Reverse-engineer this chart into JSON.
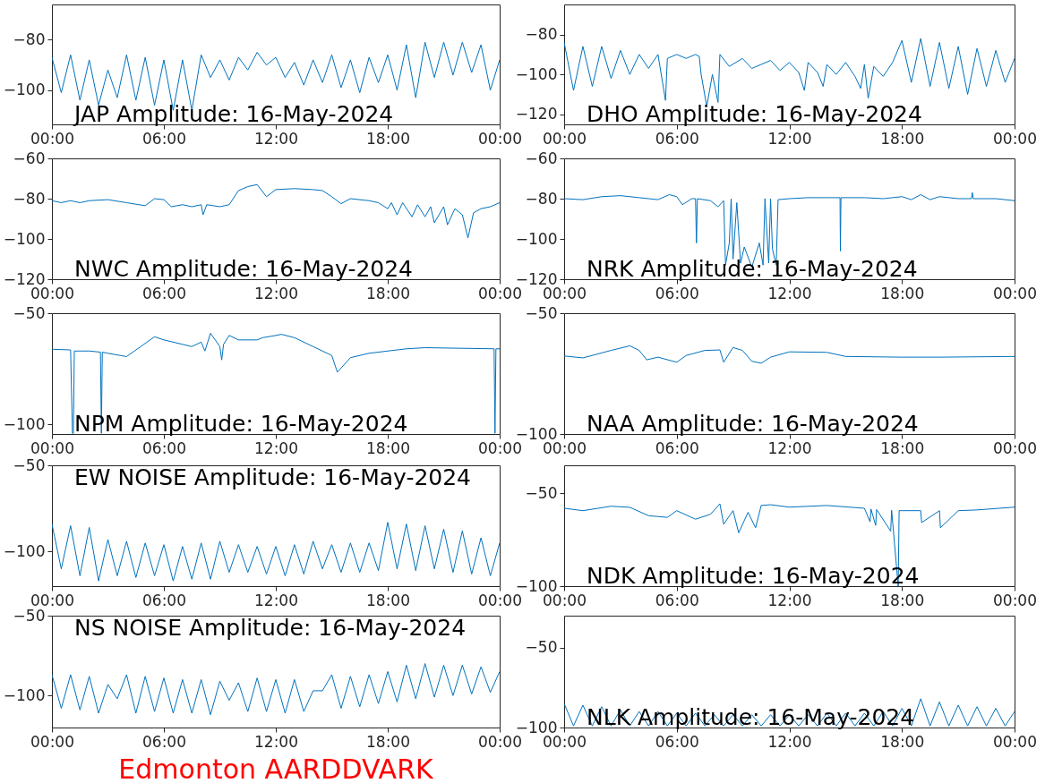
{
  "chart_data": [
    {
      "type": "line",
      "title": "JAP Amplitude: 16-May-2024",
      "xlim": [
        0,
        24
      ],
      "xticks": [
        {
          "value": 0,
          "label": "00:00"
        },
        {
          "value": 6,
          "label": "06:00"
        },
        {
          "value": 12,
          "label": "12:00"
        },
        {
          "value": 18,
          "label": "18:00"
        },
        {
          "value": 24,
          "label": "00:00"
        }
      ],
      "ylim": [
        -113.6,
        -66
      ],
      "yticks": [
        -100,
        -80
      ],
      "series": [
        {
          "color": "#0072bd",
          "x": [
            0,
            0.5,
            1,
            1.5,
            2,
            2.5,
            3,
            3.5,
            4,
            4.5,
            5,
            5.5,
            6,
            6.5,
            7,
            7.5,
            8,
            8.5,
            9,
            9.5,
            10,
            10.5,
            11,
            11.5,
            12,
            12.5,
            13,
            13.5,
            14,
            14.5,
            15,
            15.5,
            16,
            16.5,
            17,
            17.5,
            18,
            18.5,
            19,
            19.5,
            20,
            20.5,
            21,
            21.5,
            22,
            22.5,
            23,
            23.5,
            24
          ],
          "values": [
            -87,
            -101,
            -86,
            -104,
            -88,
            -106,
            -92,
            -103,
            -86,
            -104,
            -87,
            -106,
            -88,
            -108,
            -88,
            -108,
            -86,
            -95,
            -88,
            -96,
            -87,
            -92,
            -85,
            -90,
            -87,
            -95,
            -89,
            -98,
            -88,
            -97,
            -86,
            -99,
            -88,
            -101,
            -87,
            -97,
            -86,
            -100,
            -82,
            -103,
            -81,
            -95,
            -81,
            -94,
            -81,
            -93,
            -82,
            -100,
            -88
          ]
        }
      ]
    },
    {
      "type": "line",
      "title": "DHO Amplitude: 16-May-2024",
      "xlim": [
        0,
        24
      ],
      "xticks": [
        {
          "value": 0,
          "label": "00:00"
        },
        {
          "value": 6,
          "label": "06:00"
        },
        {
          "value": 12,
          "label": "12:00"
        },
        {
          "value": 18,
          "label": "18:00"
        },
        {
          "value": 24,
          "label": "00:00"
        }
      ],
      "ylim": [
        -125,
        -65
      ],
      "yticks": [
        -120,
        -100,
        -80
      ],
      "series": [
        {
          "color": "#0072bd",
          "x": [
            0,
            0.5,
            1,
            1.5,
            2,
            2.5,
            3,
            3.5,
            4,
            4.5,
            5,
            5.4,
            5.5,
            6,
            6.5,
            7,
            7.2,
            7.3,
            7.6,
            7.9,
            8.2,
            8.3,
            8.8,
            9.5,
            10,
            11,
            11.5,
            12,
            12.5,
            12.8,
            13,
            13.5,
            13.8,
            14,
            14.5,
            15,
            15.5,
            15.8,
            16,
            16.2,
            16.5,
            17,
            17.5,
            18,
            18.5,
            19,
            19.5,
            20,
            20.5,
            21,
            21.5,
            22,
            22.5,
            23,
            23.5,
            24
          ],
          "values": [
            -84,
            -108,
            -86,
            -106,
            -86,
            -102,
            -88,
            -100,
            -90,
            -97,
            -90,
            -113,
            -92,
            -90,
            -92,
            -90,
            -91,
            -100,
            -116,
            -100,
            -114,
            -90,
            -96,
            -92,
            -97,
            -93,
            -98,
            -94,
            -99,
            -108,
            -94,
            -99,
            -106,
            -95,
            -100,
            -94,
            -101,
            -107,
            -95,
            -112,
            -96,
            -101,
            -94,
            -83,
            -104,
            -82,
            -106,
            -84,
            -107,
            -86,
            -110,
            -87,
            -106,
            -88,
            -104,
            -92
          ]
        }
      ]
    },
    {
      "type": "line",
      "title": "NWC Amplitude: 16-May-2024",
      "xlim": [
        0,
        24
      ],
      "xticks": [
        {
          "value": 0,
          "label": "00:00"
        },
        {
          "value": 6,
          "label": "06:00"
        },
        {
          "value": 12,
          "label": "12:00"
        },
        {
          "value": 18,
          "label": "18:00"
        },
        {
          "value": 24,
          "label": "00:00"
        }
      ],
      "ylim": [
        -120,
        -60
      ],
      "yticks": [
        -120,
        -100,
        -80,
        -60
      ],
      "series": [
        {
          "color": "#0072bd",
          "x": [
            0,
            0.5,
            1,
            1.5,
            2,
            3,
            4,
            5,
            5.5,
            6,
            6.4,
            7,
            7.5,
            8,
            8.1,
            8.3,
            9,
            9.5,
            10,
            10.5,
            11,
            11.5,
            12,
            13,
            14,
            14.5,
            15,
            15.5,
            16,
            17,
            17.5,
            18,
            18.2,
            18.5,
            18.8,
            19.3,
            19.6,
            20,
            20.3,
            20.5,
            21,
            21.2,
            21.6,
            22,
            22.3,
            22.6,
            23,
            23.5,
            24
          ],
          "values": [
            -81,
            -82,
            -81,
            -82,
            -81,
            -80.5,
            -82,
            -83.5,
            -80,
            -80.5,
            -84,
            -83,
            -84,
            -83,
            -88,
            -83,
            -84,
            -83,
            -76,
            -74,
            -73,
            -79,
            -75.5,
            -75,
            -75.5,
            -76,
            -79,
            -82.5,
            -80,
            -81,
            -82,
            -85,
            -82,
            -88,
            -82,
            -89,
            -83,
            -89,
            -84,
            -92,
            -84,
            -93,
            -85,
            -88,
            -99.5,
            -87,
            -85,
            -84,
            -82
          ]
        }
      ]
    },
    {
      "type": "line",
      "title": "NRK Amplitude: 16-May-2024",
      "xlim": [
        0,
        24
      ],
      "xticks": [
        {
          "value": 0,
          "label": "00:00"
        },
        {
          "value": 6,
          "label": "06:00"
        },
        {
          "value": 12,
          "label": "12:00"
        },
        {
          "value": 18,
          "label": "18:00"
        },
        {
          "value": 24,
          "label": "00:00"
        }
      ],
      "ylim": [
        -120,
        -60
      ],
      "yticks": [
        -120,
        -100,
        -80,
        -60
      ],
      "series": [
        {
          "color": "#0072bd",
          "x": [
            0,
            1,
            2,
            3,
            4,
            5,
            5.6,
            6,
            6.3,
            6.8,
            7,
            7.05,
            7.1,
            7.8,
            8.2,
            8.5,
            8.6,
            8.8,
            8.9,
            9,
            9.2,
            9.4,
            9.6,
            10,
            10.4,
            10.6,
            10.7,
            10.9,
            11,
            11.1,
            11.3,
            11.4,
            12,
            13,
            14,
            14.7,
            14.72,
            14.75,
            16,
            17,
            18,
            18.5,
            19,
            19.5,
            20,
            21,
            21.7,
            21.75,
            21.8,
            23,
            24
          ],
          "values": [
            -80,
            -80.5,
            -79,
            -78.5,
            -79.5,
            -80.5,
            -78,
            -79,
            -83,
            -80,
            -80,
            -102,
            -80,
            -81,
            -84,
            -81,
            -113,
            -102,
            -80,
            -110,
            -82,
            -112,
            -104,
            -114,
            -102,
            -113,
            -80,
            -112,
            -80,
            -105,
            -113,
            -80.5,
            -80,
            -79.5,
            -79.5,
            -79.5,
            -106,
            -79.5,
            -79.5,
            -80,
            -79,
            -80.5,
            -78,
            -80.5,
            -79,
            -80,
            -80,
            -77,
            -80,
            -80,
            -81
          ]
        }
      ]
    },
    {
      "type": "line",
      "title": "NPM Amplitude: 16-May-2024",
      "xlim": [
        0,
        24
      ],
      "xticks": [
        {
          "value": 0,
          "label": "00:00"
        },
        {
          "value": 6,
          "label": "06:00"
        },
        {
          "value": 12,
          "label": "12:00"
        },
        {
          "value": 18,
          "label": "18:00"
        },
        {
          "value": 24,
          "label": "00:00"
        }
      ],
      "ylim": [
        -104.3,
        -50
      ],
      "yticks": [
        -100,
        -50
      ],
      "series": [
        {
          "color": "#0072bd",
          "x": [
            0,
            1,
            1.1,
            1.15,
            1.2,
            1.5,
            2,
            2.6,
            2.65,
            2.7,
            3,
            4,
            5.5,
            6,
            7,
            7.5,
            8,
            8.2,
            8.5,
            9,
            9.1,
            9.2,
            9.5,
            10,
            11,
            11.3,
            12,
            12.3,
            13,
            14,
            15,
            15.3,
            16,
            17,
            19,
            20,
            23.7,
            23.75,
            23.8,
            24
          ],
          "values": [
            -66.2,
            -66.5,
            -104,
            -104,
            -67,
            -67,
            -67,
            -67.5,
            -104,
            -67.5,
            -68,
            -69.5,
            -60.6,
            -62,
            -64,
            -65,
            -63,
            -67,
            -59,
            -65,
            -71,
            -64,
            -60,
            -62,
            -62,
            -61,
            -60,
            -59.5,
            -61,
            -65,
            -69,
            -76.5,
            -70,
            -68,
            -66,
            -65.5,
            -66,
            -104,
            -66,
            -66
          ]
        }
      ]
    },
    {
      "type": "line",
      "title": "NAA Amplitude: 16-May-2024",
      "xlim": [
        0,
        24
      ],
      "xticks": [
        {
          "value": 0,
          "label": "00:00"
        },
        {
          "value": 6,
          "label": "06:00"
        },
        {
          "value": 12,
          "label": "12:00"
        },
        {
          "value": 18,
          "label": "18:00"
        },
        {
          "value": 24,
          "label": "00:00"
        }
      ],
      "ylim": [
        -100,
        -50
      ],
      "yticks": [
        -100,
        -50
      ],
      "series": [
        {
          "color": "#0072bd",
          "x": [
            0,
            1,
            2.5,
            3.5,
            4,
            4.4,
            5,
            6,
            6.5,
            7.5,
            8.3,
            8.5,
            9,
            9.5,
            10,
            10.5,
            11,
            12,
            14,
            15,
            18,
            20,
            24
          ],
          "values": [
            -67.7,
            -68.5,
            -65.4,
            -63.5,
            -65.4,
            -69.3,
            -68.2,
            -70.3,
            -67.5,
            -65.4,
            -65.2,
            -70.3,
            -64.2,
            -65.4,
            -69.9,
            -70.7,
            -68.2,
            -66,
            -66.2,
            -67.9,
            -68.2,
            -68.2,
            -67.9
          ]
        }
      ]
    },
    {
      "type": "line",
      "title": "EW NOISE Amplitude: 16-May-2024",
      "xlim": [
        0,
        24
      ],
      "xticks": [
        {
          "value": 0,
          "label": "00:00"
        },
        {
          "value": 6,
          "label": "06:00"
        },
        {
          "value": 12,
          "label": "12:00"
        },
        {
          "value": 18,
          "label": "18:00"
        },
        {
          "value": 24,
          "label": "00:00"
        }
      ],
      "ylim": [
        -120,
        -50
      ],
      "yticks": [
        -100,
        -50
      ],
      "series": [
        {
          "color": "#0072bd",
          "x": [
            0,
            0.5,
            1,
            1.5,
            2,
            2.5,
            3,
            3.5,
            4,
            4.5,
            5,
            5.5,
            6,
            6.5,
            7,
            7.5,
            8,
            8.5,
            9,
            9.5,
            10,
            10.5,
            11,
            11.5,
            12,
            12.5,
            13,
            13.5,
            14,
            14.5,
            15,
            15.5,
            16,
            16.5,
            17,
            17.5,
            18,
            18.5,
            19,
            19.5,
            20,
            20.5,
            21,
            21.5,
            22,
            22.5,
            23,
            23.5,
            24
          ],
          "values": [
            -84,
            -110,
            -85,
            -114,
            -86,
            -117,
            -93,
            -114,
            -94,
            -115,
            -95,
            -114,
            -96,
            -117,
            -97,
            -116,
            -95,
            -116,
            -94,
            -112,
            -96,
            -112,
            -97,
            -113,
            -97,
            -114,
            -96,
            -113,
            -94,
            -110,
            -96,
            -112,
            -95,
            -112,
            -95,
            -111,
            -83,
            -110,
            -84,
            -111,
            -85,
            -110,
            -87,
            -112,
            -88,
            -113,
            -92,
            -114,
            -95
          ]
        }
      ]
    },
    {
      "type": "line",
      "title": "NDK Amplitude: 16-May-2024",
      "xlim": [
        0,
        24
      ],
      "xticks": [
        {
          "value": 0,
          "label": "00:00"
        },
        {
          "value": 6,
          "label": "06:00"
        },
        {
          "value": 12,
          "label": "12:00"
        },
        {
          "value": 18,
          "label": "18:00"
        },
        {
          "value": 24,
          "label": "00:00"
        }
      ],
      "ylim": [
        -100,
        -35
      ],
      "yticks": [
        -100,
        -50
      ],
      "series": [
        {
          "color": "#0072bd",
          "x": [
            0,
            1,
            2.5,
            3.5,
            4.5,
            5.5,
            6,
            7,
            7.8,
            8.3,
            8.5,
            9,
            9.3,
            9.8,
            10.2,
            10.5,
            11,
            12,
            14,
            16,
            16.3,
            16.35,
            16.6,
            16.65,
            17.4,
            17.45,
            17.8,
            17.85,
            18,
            19,
            19.05,
            20,
            20.05,
            21,
            22,
            24
          ],
          "values": [
            -58.1,
            -59.4,
            -57,
            -57.6,
            -62.1,
            -63,
            -59.4,
            -64,
            -61.3,
            -55.7,
            -66.7,
            -59.4,
            -71.3,
            -60.3,
            -68.6,
            -56.6,
            -56.2,
            -57.5,
            -56.6,
            -58.1,
            -65.4,
            -58.5,
            -67.3,
            -58.8,
            -70.4,
            -59.2,
            -100,
            -59.4,
            -59.4,
            -59.4,
            -65.8,
            -59.4,
            -68.6,
            -59.4,
            -59,
            -57.5
          ]
        }
      ]
    },
    {
      "type": "line",
      "title": "NS NOISE Amplitude: 16-May-2024",
      "annotations": [
        "Edmonton AARDDVARK"
      ],
      "xlim": [
        0,
        24
      ],
      "xticks": [
        {
          "value": 0,
          "label": "00:00"
        },
        {
          "value": 6,
          "label": "06:00"
        },
        {
          "value": 12,
          "label": "12:00"
        },
        {
          "value": 18,
          "label": "18:00"
        },
        {
          "value": 24,
          "label": "00:00"
        }
      ],
      "ylim": [
        -120,
        -50
      ],
      "yticks": [
        -100,
        -50
      ],
      "series": [
        {
          "color": "#0072bd",
          "x": [
            0,
            0.5,
            1,
            1.5,
            2,
            2.5,
            3,
            3.5,
            4,
            4.5,
            5,
            5.5,
            6,
            6.5,
            7,
            7.5,
            8,
            8.5,
            9,
            9.5,
            10,
            10.5,
            11,
            11.5,
            12,
            12.5,
            13,
            13.5,
            14,
            14.5,
            15,
            15.5,
            16,
            16.5,
            17,
            17.5,
            18,
            18.5,
            19,
            19.5,
            20,
            20.5,
            21,
            21.5,
            22,
            22.5,
            23,
            23.5,
            24
          ],
          "values": [
            -87,
            -108,
            -87,
            -109,
            -88,
            -111,
            -93,
            -102,
            -87,
            -111,
            -88,
            -110,
            -89,
            -111,
            -90,
            -111,
            -90,
            -112,
            -91,
            -103,
            -92,
            -110,
            -89,
            -110,
            -90,
            -111,
            -90,
            -110,
            -97,
            -97,
            -87,
            -108,
            -88,
            -107,
            -87,
            -105,
            -85,
            -104,
            -81,
            -102,
            -80,
            -101,
            -81,
            -100,
            -81,
            -99,
            -82,
            -98,
            -85
          ]
        }
      ]
    },
    {
      "type": "line",
      "title": "NLK Amplitude: 16-May-2024",
      "xlim": [
        0,
        24
      ],
      "xticks": [
        {
          "value": 0,
          "label": "00:00"
        },
        {
          "value": 6,
          "label": "06:00"
        },
        {
          "value": 12,
          "label": "12:00"
        },
        {
          "value": 18,
          "label": "18:00"
        },
        {
          "value": 24,
          "label": "00:00"
        }
      ],
      "ylim": [
        -100,
        -30
      ],
      "yticks": [
        -100,
        -50
      ],
      "series": [
        {
          "color": "#0072bd",
          "x": [
            0,
            0.5,
            1,
            1.5,
            2,
            2.5,
            3,
            3.5,
            4,
            4.5,
            5,
            5.5,
            6,
            6.5,
            7,
            7.5,
            8,
            8.5,
            9,
            9.5,
            10,
            10.5,
            11,
            11.5,
            12,
            12.5,
            13,
            13.5,
            14,
            14.5,
            15,
            15.5,
            16,
            16.5,
            17,
            17.5,
            18,
            18.5,
            19,
            19.5,
            20,
            20.5,
            21,
            21.5,
            22,
            22.5,
            23,
            23.5,
            24
          ],
          "values": [
            -85,
            -99,
            -86,
            -99,
            -87,
            -99,
            -89,
            -99,
            -90,
            -99,
            -90,
            -99,
            -91,
            -99,
            -91,
            -99,
            -92,
            -99,
            -92,
            -99,
            -92,
            -99,
            -92,
            -99,
            -92,
            -99,
            -92,
            -99,
            -91,
            -99,
            -91,
            -99,
            -91,
            -99,
            -90,
            -99,
            -88,
            -99,
            -82,
            -99,
            -84,
            -99,
            -86,
            -99,
            -87,
            -99,
            -88,
            -99,
            -90
          ]
        }
      ]
    }
  ]
}
